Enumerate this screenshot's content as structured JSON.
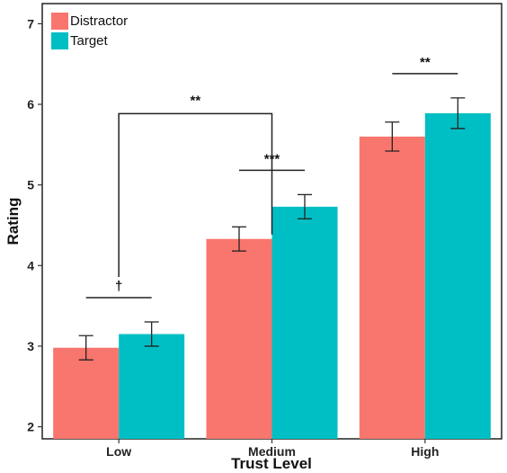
{
  "chart_data": {
    "type": "bar",
    "xlabel": "Trust Level",
    "ylabel": "Rating",
    "categories": [
      "Low",
      "Medium",
      "High"
    ],
    "ylim": [
      1.85,
      7.25
    ],
    "yticks": [
      2,
      3,
      4,
      5,
      6,
      7
    ],
    "series": [
      {
        "name": "Distractor",
        "color": "#F8766D",
        "values": [
          2.98,
          4.33,
          5.6
        ],
        "error": [
          0.15,
          0.15,
          0.18
        ]
      },
      {
        "name": "Target",
        "color": "#00BFC4",
        "values": [
          3.15,
          4.73,
          5.89
        ],
        "error": [
          0.15,
          0.15,
          0.19
        ]
      }
    ],
    "legend_position": "top-left",
    "grid": false,
    "annotations": [
      {
        "label": "†",
        "type": "within",
        "category": 0
      },
      {
        "label": "***",
        "type": "within",
        "category": 1
      },
      {
        "label": "**",
        "type": "within",
        "category": 2
      },
      {
        "label": "**",
        "type": "between",
        "from_category": 0,
        "to_category": 1
      }
    ]
  }
}
